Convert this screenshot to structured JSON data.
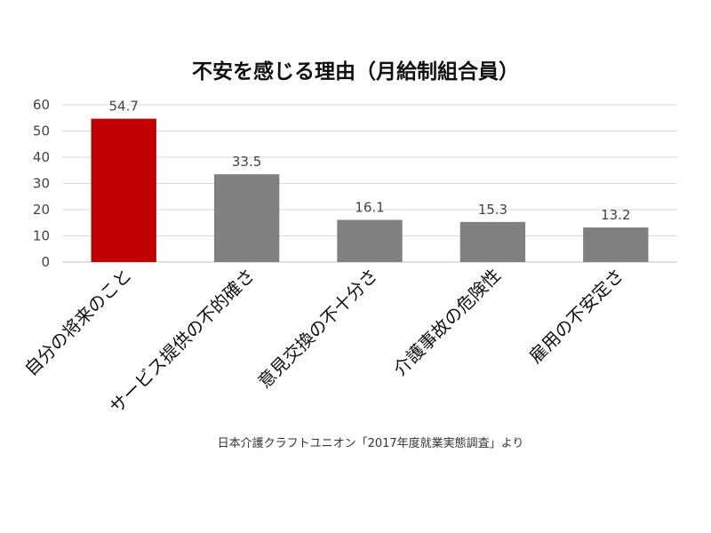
{
  "chart_data": {
    "type": "bar",
    "title": "不安を感じる理由（月給制組合員）",
    "categories": [
      "自分の将来のこと",
      "サービス提供の不的確さ",
      "意見交換の不十分さ",
      "介護事故の危険性",
      "雇用の不安定さ"
    ],
    "values": [
      54.7,
      33.5,
      16.1,
      15.3,
      13.2
    ],
    "value_labels": [
      "54.7",
      "33.5",
      "16.1",
      "15.3",
      "13.2"
    ],
    "yticks": [
      "0",
      "10",
      "20",
      "30",
      "40",
      "50",
      "60"
    ],
    "ylim": [
      0,
      60
    ],
    "xlabel": "",
    "ylabel": "",
    "grid": true,
    "colors": {
      "highlight": "#C00000",
      "default": "#808080"
    },
    "highlight_index": 0,
    "source": "日本介護クラフトユニオン「2017年度就業実態調査」より"
  }
}
